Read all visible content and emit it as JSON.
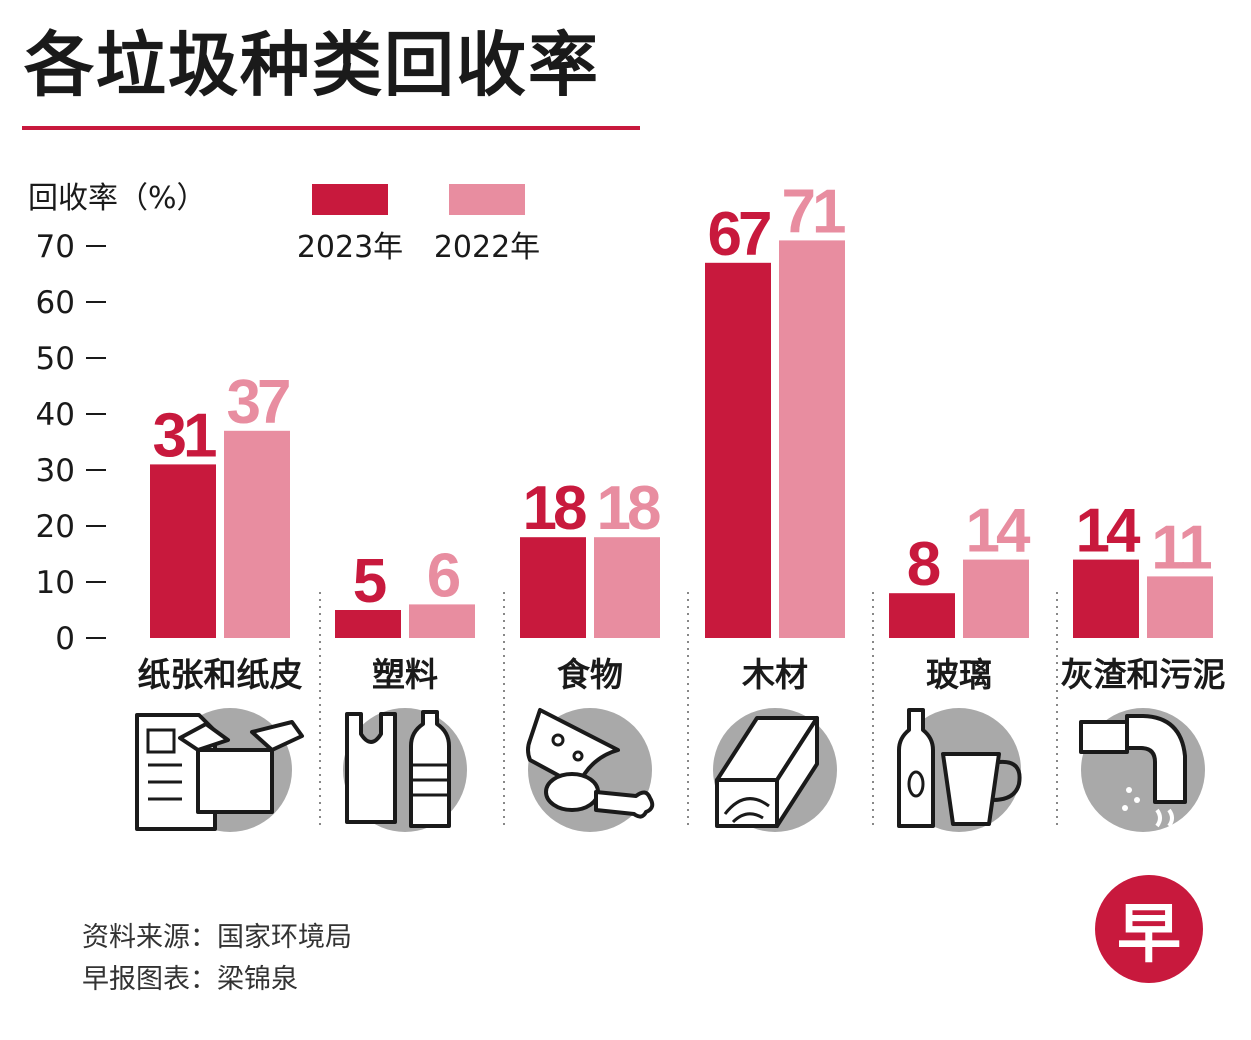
{
  "title": "各垃圾种类回收率",
  "colors": {
    "accent": "#c8193d",
    "series_2023": "#c8193d",
    "series_2022": "#e88da0",
    "icon_circle": "#a9a9a9",
    "text": "#1a1a1a"
  },
  "chart_data": {
    "type": "bar",
    "title": "各垃圾种类回收率",
    "ylabel": "回收率（%）",
    "xlabel": "",
    "ylim": [
      0,
      70
    ],
    "yticks": [
      "0",
      "10",
      "20",
      "30",
      "40",
      "50",
      "60",
      "70"
    ],
    "categories": [
      "纸张和纸皮",
      "塑料",
      "食物",
      "木材",
      "玻璃",
      "灰渣和污泥"
    ],
    "series": [
      {
        "name": "2023年",
        "values": [
          31,
          5,
          18,
          67,
          8,
          14
        ],
        "labels": [
          "31",
          "5",
          "18",
          "67",
          "8",
          "14"
        ]
      },
      {
        "name": "2022年",
        "values": [
          37,
          6,
          18,
          71,
          14,
          11
        ],
        "labels": [
          "37",
          "6",
          "18",
          "71",
          "14",
          "11"
        ]
      }
    ],
    "legend": "top",
    "grid": false,
    "icons": [
      "paper-box-icon",
      "plastic-bag-bottle-icon",
      "cheese-drumstick-icon",
      "wood-plank-icon",
      "bottle-cup-icon",
      "pipe-sludge-icon"
    ]
  },
  "footer": {
    "source": "资料来源：国家环境局",
    "credit": "早报图表：梁锦泉"
  },
  "logo": {
    "char": "早"
  }
}
